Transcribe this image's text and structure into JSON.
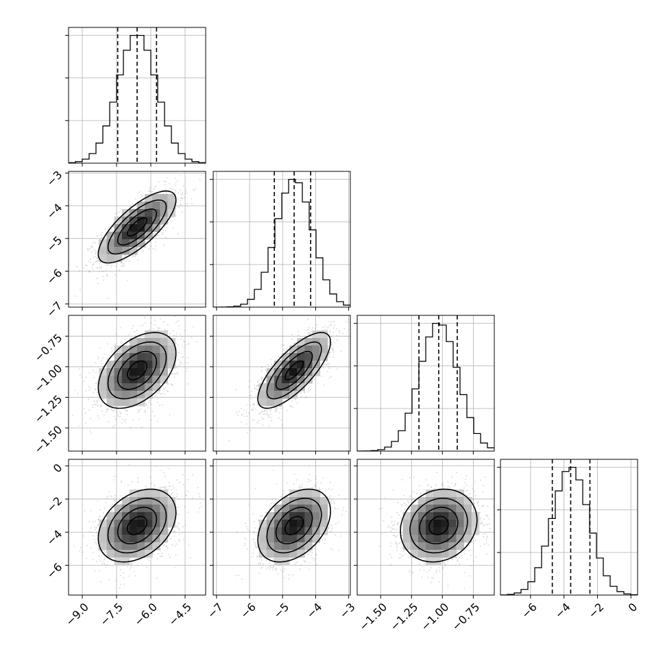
{
  "chart_data": {
    "type": "corner",
    "parameters": [
      {
        "range": [
          -9.6,
          -3.6
        ],
        "ticks": [
          -9.0,
          -7.5,
          -6.0,
          -4.5
        ],
        "tick_labels": [
          "−9.0",
          "−7.5",
          "−6.0",
          "−4.5"
        ],
        "median": -6.6,
        "q16": -7.45,
        "q84": -5.75,
        "sigma": 0.85
      },
      {
        "range": [
          -7.1,
          -2.95
        ],
        "ticks": [
          -7,
          -6,
          -5,
          -4,
          -3
        ],
        "tick_labels": [
          "−7",
          "−6",
          "−5",
          "−4",
          "−3"
        ],
        "median": -4.65,
        "q16": -5.25,
        "q84": -4.15,
        "sigma": 0.55
      },
      {
        "range": [
          -1.69,
          -0.58
        ],
        "ticks": [
          -1.5,
          -1.25,
          -1.0,
          -0.75
        ],
        "tick_labels": [
          "−1.50",
          "−1.25",
          "−1.00",
          "−0.75"
        ],
        "median": -1.03,
        "q16": -1.19,
        "q84": -0.88,
        "sigma": 0.155
      },
      {
        "range": [
          -7.8,
          0.4
        ],
        "ticks": [
          -6,
          -4,
          -2,
          0
        ],
        "tick_labels": [
          "−6",
          "−4",
          "−2",
          "0"
        ],
        "median": -3.6,
        "q16": -4.7,
        "q84": -2.45,
        "sigma": 1.1
      }
    ],
    "correlations": {
      "1-0": 0.75,
      "2-0": 0.45,
      "2-1": 0.75,
      "3-0": 0.35,
      "3-1": 0.4,
      "3-2": 0.15
    },
    "contour_levels_sigma": [
      0.5,
      1.0,
      1.5,
      2.0
    ],
    "histogram_bins": 20,
    "quantile_lines": "dashed",
    "grid": true
  }
}
